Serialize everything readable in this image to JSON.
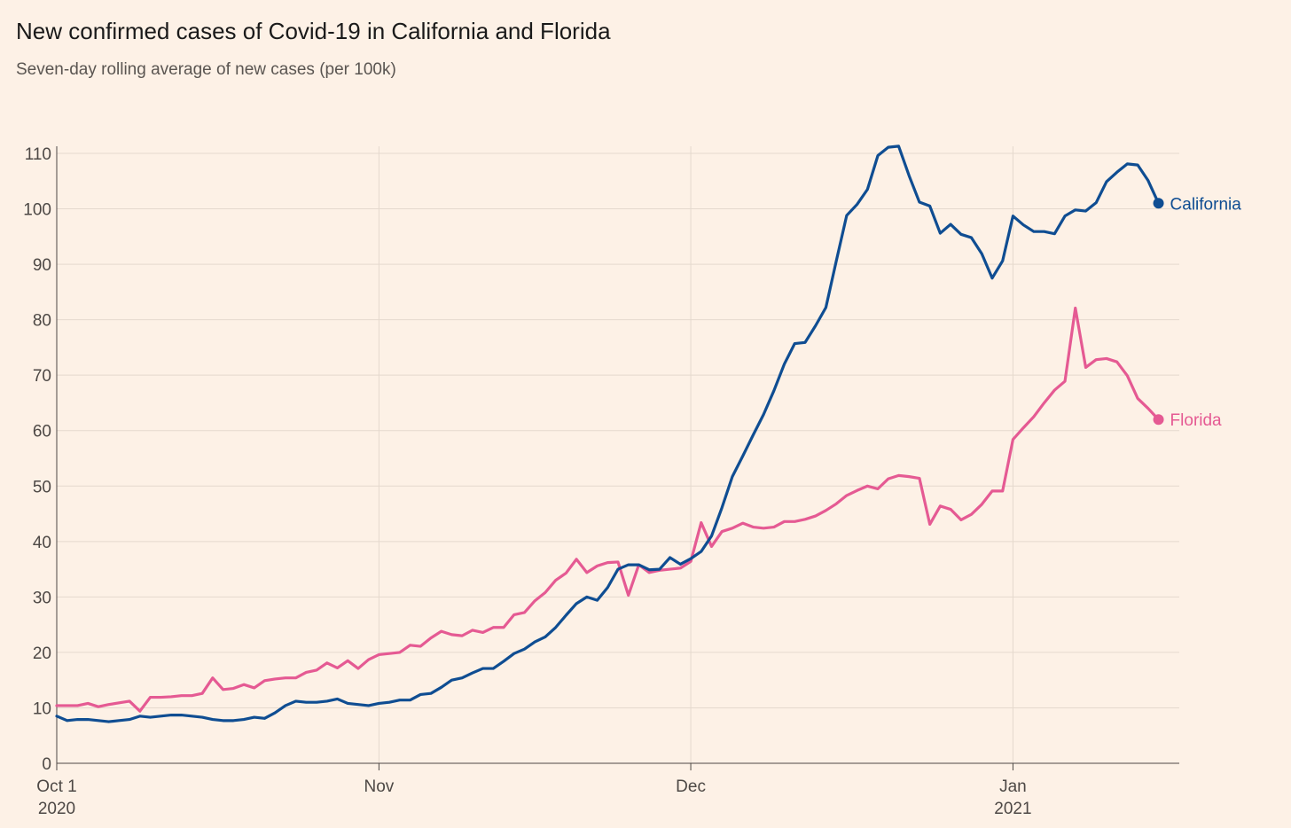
{
  "title": "New confirmed cases of Covid-19 in California and Florida",
  "subtitle": "Seven-day rolling average of new cases (per 100k)",
  "colors": {
    "background": "#fdf1e6",
    "grid": "#e5d9ce",
    "axis": "#4d4845",
    "california": "#0f4d92",
    "florida": "#e55a93"
  },
  "chart_data": {
    "type": "line",
    "title": "New confirmed cases of Covid-19 in California and Florida",
    "subtitle": "Seven-day rolling average of new cases (per 100k)",
    "ylim": [
      0,
      110
    ],
    "yticks": [
      0,
      10,
      20,
      30,
      40,
      50,
      60,
      70,
      80,
      90,
      100,
      110
    ],
    "x_start": "2020-10-01",
    "x_day_range": [
      0,
      108
    ],
    "xticks": [
      {
        "day": 0,
        "label": "Oct 1",
        "sublabel": "2020"
      },
      {
        "day": 31,
        "label": "Nov",
        "sublabel": ""
      },
      {
        "day": 61,
        "label": "Dec",
        "sublabel": ""
      },
      {
        "day": 92,
        "label": "Jan",
        "sublabel": "2021"
      }
    ],
    "grid": true,
    "series": [
      {
        "name": "California",
        "label": "California",
        "color": "#0f4d92",
        "values": [
          8.5,
          7.7,
          7.9,
          7.9,
          7.7,
          7.5,
          7.7,
          7.9,
          8.5,
          8.3,
          8.5,
          8.7,
          8.7,
          8.5,
          8.3,
          7.9,
          7.7,
          7.7,
          7.9,
          8.3,
          8.1,
          9.1,
          10.4,
          11.2,
          11.0,
          11.0,
          11.2,
          11.6,
          10.8,
          10.6,
          10.4,
          10.8,
          11.0,
          11.4,
          11.4,
          12.4,
          12.6,
          13.7,
          15.0,
          15.4,
          16.3,
          17.1,
          17.1,
          18.4,
          19.8,
          20.6,
          21.9,
          22.8,
          24.5,
          26.7,
          28.8,
          30.0,
          29.4,
          31.7,
          35.0,
          35.8,
          35.8,
          34.9,
          35.0,
          37.1,
          35.9,
          36.9,
          38.2,
          41.0,
          46.1,
          51.7,
          55.4,
          59.2,
          62.9,
          67.2,
          72.0,
          75.7,
          75.9,
          78.9,
          82.2,
          90.6,
          98.8,
          100.8,
          103.5,
          109.6,
          111.1,
          111.3,
          106.0,
          101.2,
          100.5,
          95.6,
          97.2,
          95.4,
          94.8,
          91.9,
          87.5,
          90.6,
          98.7,
          97.1,
          95.9,
          95.9,
          95.5,
          98.7,
          99.8,
          99.6,
          101.1,
          104.9,
          106.6,
          108.1,
          107.9,
          105.1,
          101.0
        ]
      },
      {
        "name": "Florida",
        "label": "Florida",
        "color": "#e55a93",
        "values": [
          10.4,
          10.4,
          10.4,
          10.8,
          10.2,
          10.6,
          10.9,
          11.2,
          9.4,
          11.9,
          11.9,
          12.0,
          12.2,
          12.2,
          12.6,
          15.4,
          13.3,
          13.5,
          14.2,
          13.6,
          14.9,
          15.2,
          15.4,
          15.4,
          16.4,
          16.8,
          18.1,
          17.2,
          18.5,
          17.1,
          18.7,
          19.6,
          19.8,
          20.0,
          21.3,
          21.1,
          22.6,
          23.8,
          23.2,
          23.0,
          24.0,
          23.6,
          24.5,
          24.5,
          26.8,
          27.2,
          29.3,
          30.8,
          33.0,
          34.3,
          36.8,
          34.4,
          35.6,
          36.2,
          36.3,
          30.3,
          35.8,
          34.4,
          34.8,
          35.0,
          35.2,
          36.4,
          43.4,
          39.1,
          41.8,
          42.4,
          43.3,
          42.6,
          42.4,
          42.6,
          43.6,
          43.6,
          44.0,
          44.6,
          45.6,
          46.8,
          48.3,
          49.2,
          50.0,
          49.5,
          51.3,
          51.9,
          51.7,
          51.4,
          43.1,
          46.4,
          45.8,
          43.9,
          44.9,
          46.7,
          49.1,
          49.1,
          58.4,
          60.5,
          62.5,
          65.0,
          67.3,
          68.9,
          82.1,
          71.4,
          72.8,
          73.0,
          72.4,
          69.9,
          65.8,
          64.0,
          62.0
        ]
      }
    ]
  }
}
